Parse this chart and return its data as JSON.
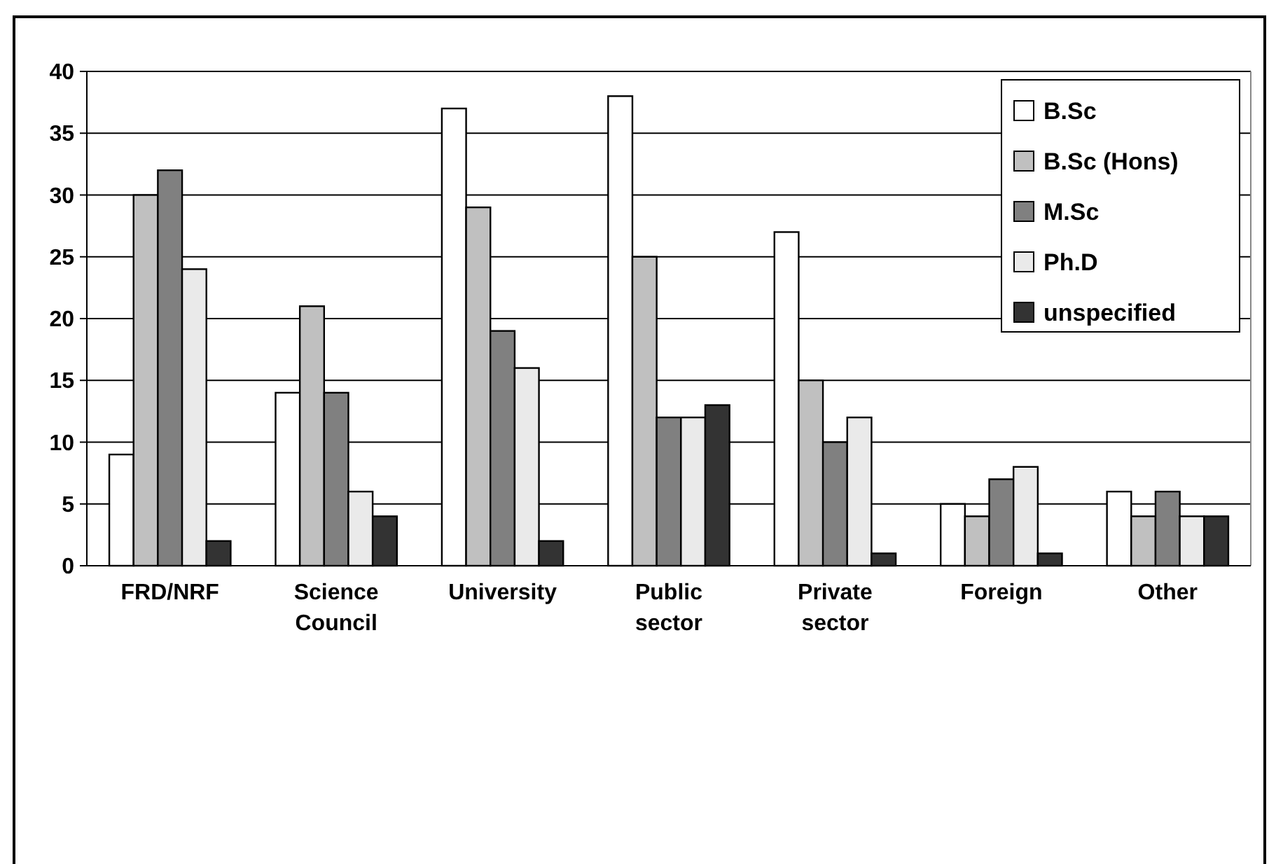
{
  "chart_data": {
    "type": "bar",
    "categories": [
      "FRD/NRF",
      "Science Council",
      "University",
      "Public sector",
      "Private sector",
      "Foreign",
      "Other"
    ],
    "series": [
      {
        "name": "B.Sc",
        "color": "#ffffff",
        "values": [
          9,
          14,
          37,
          38,
          27,
          5,
          6
        ]
      },
      {
        "name": "B.Sc (Hons)",
        "color": "#c0c0c0",
        "values": [
          30,
          21,
          29,
          25,
          15,
          4,
          4
        ]
      },
      {
        "name": "M.Sc",
        "color": "#808080",
        "values": [
          32,
          14,
          19,
          12,
          10,
          7,
          6
        ]
      },
      {
        "name": "Ph.D",
        "color": "#eaeaea",
        "values": [
          24,
          6,
          16,
          12,
          12,
          8,
          4
        ]
      },
      {
        "name": "unspecified",
        "color": "#333333",
        "values": [
          2,
          4,
          2,
          13,
          1,
          1,
          4
        ]
      }
    ],
    "ylim": [
      0,
      40
    ],
    "yticks": [
      0,
      5,
      10,
      15,
      20,
      25,
      30,
      35,
      40
    ],
    "grid": "y",
    "legend": "top right"
  }
}
